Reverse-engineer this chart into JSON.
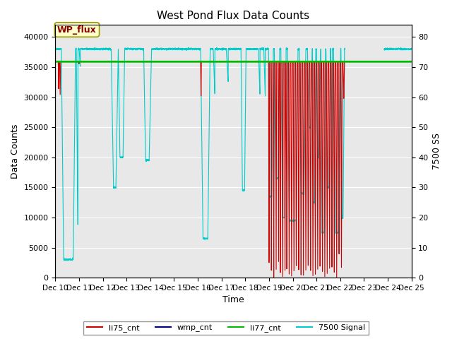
{
  "title": "West Pond Flux Data Counts",
  "xlabel": "Time",
  "ylabel_left": "Data Counts",
  "ylabel_right": "7500 SS",
  "xlim_days": [
    10,
    25
  ],
  "ylim_left": [
    0,
    42000
  ],
  "ylim_right": [
    0,
    84
  ],
  "yticks_left": [
    0,
    5000,
    10000,
    15000,
    20000,
    25000,
    30000,
    35000,
    40000
  ],
  "yticks_right": [
    0,
    10,
    20,
    30,
    40,
    50,
    60,
    70,
    80
  ],
  "xtick_labels": [
    "Dec 10",
    "Dec 11",
    "Dec 12",
    "Dec 13",
    "Dec 14",
    "Dec 15",
    "Dec 16",
    "Dec 17",
    "Dec 18",
    "Dec 19",
    "Dec 20",
    "Dec 21",
    "Dec 22",
    "Dec 23",
    "Dec 24",
    "Dec 25"
  ],
  "annotation_box_text": "WP_flux",
  "li77_cnt_value": 35900,
  "background_color": "#e8e8e8",
  "colors": {
    "li75_cnt": "#cc0000",
    "wmp_cnt": "#000080",
    "li77_cnt": "#00bb00",
    "signal_7500": "#00cccc"
  },
  "legend_labels": [
    "li75_cnt",
    "wmp_cnt",
    "li77_cnt",
    "7500 Signal"
  ]
}
